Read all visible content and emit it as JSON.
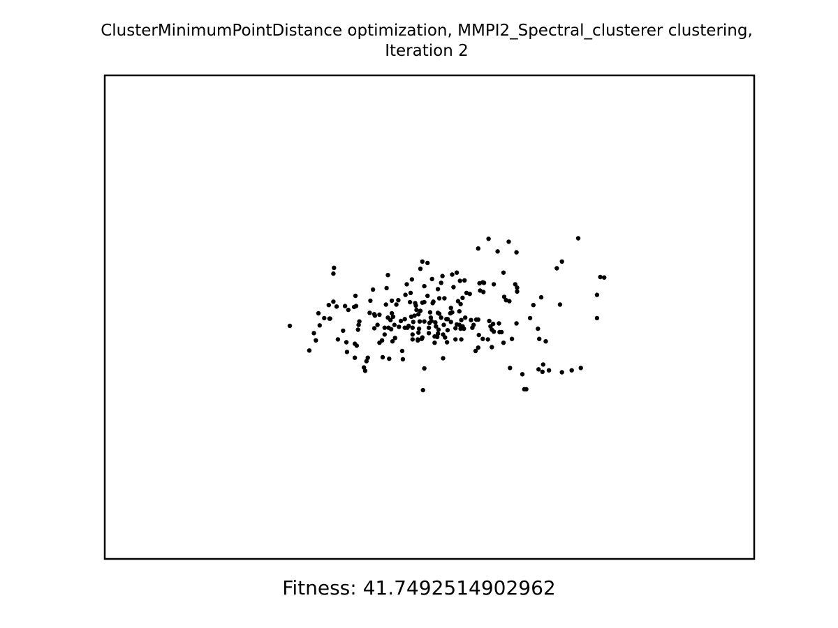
{
  "figure": {
    "title_line1": "ClusterMinimumPointDistance optimization, MMPI2_Spectral_clusterer clustering,",
    "title_line2": "Iteration 2",
    "caption": "Fitness: 41.7492514902962"
  },
  "chart_data": {
    "type": "scatter",
    "title": "ClusterMinimumPointDistance optimization, MMPI2_Spectral_clusterer clustering, Iteration 2",
    "xlabel": "",
    "ylabel": "",
    "xlim": [
      0,
      1
    ],
    "ylim": [
      0,
      1
    ],
    "axes_visible": false,
    "ticks": false,
    "grid": false,
    "marker_color": "#000000",
    "points": [
      [
        0.285,
        0.482
      ],
      [
        0.315,
        0.431
      ],
      [
        0.322,
        0.467
      ],
      [
        0.325,
        0.452
      ],
      [
        0.331,
        0.483
      ],
      [
        0.329,
        0.508
      ],
      [
        0.338,
        0.498
      ],
      [
        0.347,
        0.497
      ],
      [
        0.352,
        0.59
      ],
      [
        0.353,
        0.602
      ],
      [
        0.352,
        0.532
      ],
      [
        0.345,
        0.525
      ],
      [
        0.346,
        0.497
      ],
      [
        0.357,
        0.522
      ],
      [
        0.359,
        0.454
      ],
      [
        0.367,
        0.472
      ],
      [
        0.373,
        0.428
      ],
      [
        0.372,
        0.448
      ],
      [
        0.37,
        0.523
      ],
      [
        0.375,
        0.515
      ],
      [
        0.384,
        0.521
      ],
      [
        0.385,
        0.445
      ],
      [
        0.388,
        0.441
      ],
      [
        0.385,
        0.416
      ],
      [
        0.386,
        0.544
      ],
      [
        0.387,
        0.523
      ],
      [
        0.39,
        0.474
      ],
      [
        0.391,
        0.484
      ],
      [
        0.392,
        0.491
      ],
      [
        0.399,
        0.396
      ],
      [
        0.401,
        0.389
      ],
      [
        0.403,
        0.409
      ],
      [
        0.405,
        0.416
      ],
      [
        0.408,
        0.509
      ],
      [
        0.409,
        0.534
      ],
      [
        0.413,
        0.557
      ],
      [
        0.415,
        0.506
      ],
      [
        0.416,
        0.503
      ],
      [
        0.415,
        0.477
      ],
      [
        0.42,
        0.484
      ],
      [
        0.423,
        0.505
      ],
      [
        0.428,
        0.417
      ],
      [
        0.423,
        0.447
      ],
      [
        0.427,
        0.452
      ],
      [
        0.431,
        0.464
      ],
      [
        0.431,
        0.478
      ],
      [
        0.433,
        0.526
      ],
      [
        0.436,
        0.499
      ],
      [
        0.438,
        0.414
      ],
      [
        0.44,
        0.494
      ],
      [
        0.441,
        0.475
      ],
      [
        0.442,
        0.508
      ],
      [
        0.434,
        0.56
      ],
      [
        0.436,
        0.587
      ],
      [
        0.437,
        0.478
      ],
      [
        0.442,
        0.534
      ],
      [
        0.443,
        0.45
      ],
      [
        0.447,
        0.457
      ],
      [
        0.446,
        0.484
      ],
      [
        0.444,
        0.501
      ],
      [
        0.449,
        0.526
      ],
      [
        0.452,
        0.535
      ],
      [
        0.453,
        0.48
      ],
      [
        0.456,
        0.492
      ],
      [
        0.458,
        0.43
      ],
      [
        0.459,
        0.413
      ],
      [
        0.462,
        0.478
      ],
      [
        0.462,
        0.496
      ],
      [
        0.463,
        0.546
      ],
      [
        0.465,
        0.568
      ],
      [
        0.466,
        0.478
      ],
      [
        0.468,
        0.482
      ],
      [
        0.47,
        0.531
      ],
      [
        0.471,
        0.55
      ],
      [
        0.473,
        0.578
      ],
      [
        0.472,
        0.501
      ],
      [
        0.474,
        0.454
      ],
      [
        0.474,
        0.464
      ],
      [
        0.474,
        0.478
      ],
      [
        0.475,
        0.49
      ],
      [
        0.477,
        0.503
      ],
      [
        0.478,
        0.529
      ],
      [
        0.479,
        0.524
      ],
      [
        0.48,
        0.515
      ],
      [
        0.482,
        0.452
      ],
      [
        0.482,
        0.454
      ],
      [
        0.483,
        0.468
      ],
      [
        0.484,
        0.476
      ],
      [
        0.486,
        0.513
      ],
      [
        0.485,
        0.491
      ],
      [
        0.483,
        0.506
      ],
      [
        0.489,
        0.53
      ],
      [
        0.488,
        0.455
      ],
      [
        0.489,
        0.458
      ],
      [
        0.492,
        0.491
      ],
      [
        0.492,
        0.394
      ],
      [
        0.49,
        0.349
      ],
      [
        0.486,
        0.6
      ],
      [
        0.492,
        0.531
      ],
      [
        0.492,
        0.564
      ],
      [
        0.489,
        0.615
      ],
      [
        0.497,
        0.544
      ],
      [
        0.499,
        0.478
      ],
      [
        0.5,
        0.488
      ],
      [
        0.502,
        0.499
      ],
      [
        0.503,
        0.492
      ],
      [
        0.501,
        0.51
      ],
      [
        0.499,
        0.467
      ],
      [
        0.504,
        0.579
      ],
      [
        0.497,
        0.612
      ],
      [
        0.505,
        0.529
      ],
      [
        0.506,
        0.532
      ],
      [
        0.508,
        0.46
      ],
      [
        0.508,
        0.447
      ],
      [
        0.509,
        0.489
      ],
      [
        0.51,
        0.481
      ],
      [
        0.513,
        0.558
      ],
      [
        0.513,
        0.509
      ],
      [
        0.512,
        0.459
      ],
      [
        0.513,
        0.466
      ],
      [
        0.515,
        0.507
      ],
      [
        0.518,
        0.571
      ],
      [
        0.514,
        0.474
      ],
      [
        0.515,
        0.539
      ],
      [
        0.518,
        0.499
      ],
      [
        0.521,
        0.415
      ],
      [
        0.522,
        0.484
      ],
      [
        0.524,
        0.458
      ],
      [
        0.521,
        0.464
      ],
      [
        0.523,
        0.539
      ],
      [
        0.52,
        0.585
      ],
      [
        0.526,
        0.496
      ],
      [
        0.528,
        0.496
      ],
      [
        0.527,
        0.448
      ],
      [
        0.532,
        0.508
      ],
      [
        0.533,
        0.49
      ],
      [
        0.535,
        0.51
      ],
      [
        0.533,
        0.519
      ],
      [
        0.528,
        0.473
      ],
      [
        0.537,
        0.562
      ],
      [
        0.535,
        0.588
      ],
      [
        0.54,
        0.454
      ],
      [
        0.54,
        0.477
      ],
      [
        0.542,
        0.485
      ],
      [
        0.544,
        0.533
      ],
      [
        0.542,
        0.592
      ],
      [
        0.546,
        0.484
      ],
      [
        0.546,
        0.512
      ],
      [
        0.549,
        0.454
      ],
      [
        0.547,
        0.575
      ],
      [
        0.548,
        0.527
      ],
      [
        0.548,
        0.476
      ],
      [
        0.551,
        0.54
      ],
      [
        0.549,
        0.494
      ],
      [
        0.551,
        0.481
      ],
      [
        0.553,
        0.476
      ],
      [
        0.555,
        0.499
      ],
      [
        0.554,
        0.576
      ],
      [
        0.557,
        0.55
      ],
      [
        0.564,
        0.494
      ],
      [
        0.562,
        0.548
      ],
      [
        0.566,
        0.478
      ],
      [
        0.568,
        0.484
      ],
      [
        0.571,
        0.43
      ],
      [
        0.572,
        0.495
      ],
      [
        0.575,
        0.437
      ],
      [
        0.575,
        0.495
      ],
      [
        0.576,
        0.463
      ],
      [
        0.575,
        0.642
      ],
      [
        0.577,
        0.57
      ],
      [
        0.578,
        0.555
      ],
      [
        0.582,
        0.572
      ],
      [
        0.582,
        0.455
      ],
      [
        0.583,
        0.552
      ],
      [
        0.584,
        0.571
      ],
      [
        0.591,
        0.662
      ],
      [
        0.59,
        0.454
      ],
      [
        0.592,
        0.492
      ],
      [
        0.594,
        0.481
      ],
      [
        0.596,
        0.438
      ],
      [
        0.596,
        0.474
      ],
      [
        0.598,
        0.486
      ],
      [
        0.599,
        0.568
      ],
      [
        0.599,
        0.47
      ],
      [
        0.605,
        0.636
      ],
      [
        0.607,
        0.487
      ],
      [
        0.608,
        0.469
      ],
      [
        0.611,
        0.469
      ],
      [
        0.614,
        0.592
      ],
      [
        0.615,
        0.542
      ],
      [
        0.614,
        0.447
      ],
      [
        0.618,
        0.535
      ],
      [
        0.623,
        0.533
      ],
      [
        0.622,
        0.656
      ],
      [
        0.624,
        0.395
      ],
      [
        0.627,
        0.455
      ],
      [
        0.632,
        0.568
      ],
      [
        0.634,
        0.634
      ],
      [
        0.634,
        0.487
      ],
      [
        0.635,
        0.553
      ],
      [
        0.635,
        0.561
      ],
      [
        0.643,
        0.382
      ],
      [
        0.646,
        0.351
      ],
      [
        0.649,
        0.351
      ],
      [
        0.655,
        0.498
      ],
      [
        0.66,
        0.525
      ],
      [
        0.672,
        0.541
      ],
      [
        0.674,
        0.387
      ],
      [
        0.669,
        0.455
      ],
      [
        0.667,
        0.476
      ],
      [
        0.675,
        0.402
      ],
      [
        0.668,
        0.392
      ],
      [
        0.684,
        0.39
      ],
      [
        0.679,
        0.45
      ],
      [
        0.701,
        0.526
      ],
      [
        0.696,
        0.601
      ],
      [
        0.704,
        0.386
      ],
      [
        0.704,
        0.615
      ],
      [
        0.719,
        0.39
      ],
      [
        0.729,
        0.663
      ],
      [
        0.733,
        0.395
      ],
      [
        0.758,
        0.546
      ],
      [
        0.758,
        0.498
      ],
      [
        0.763,
        0.583
      ],
      [
        0.769,
        0.582
      ]
    ]
  }
}
